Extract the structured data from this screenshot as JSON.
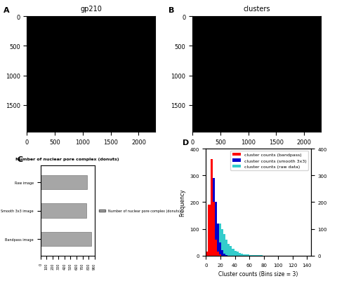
{
  "chart_data": [
    {
      "type": "image",
      "panel_label": "A",
      "title": "gp210",
      "color": "#000000",
      "xlim": [
        0,
        2300
      ],
      "ylim": [
        1950,
        0
      ],
      "xticks": [
        0,
        500,
        1000,
        1500,
        2000
      ],
      "yticks": [
        0,
        500,
        1000,
        1500
      ]
    },
    {
      "type": "image",
      "panel_label": "B",
      "title": "clusters",
      "color": "#000000",
      "xlim": [
        0,
        2300
      ],
      "ylim": [
        1950,
        0
      ],
      "xticks": [
        0,
        500,
        1000,
        1500,
        2000
      ],
      "yticks": [
        0,
        500,
        1000,
        1500
      ]
    },
    {
      "type": "bar",
      "panel_label": "C",
      "orientation": "horizontal",
      "title": "Number of nuclear pore complex (donuts)",
      "categories": [
        "Raw image",
        "Smooth 3x3 image",
        "Bandpass image"
      ],
      "series": [
        {
          "name": "Number of nuclear pore complex (donuts)",
          "color": "#a6a6a6",
          "values": [
            770,
            760,
            840
          ]
        }
      ],
      "xlim": [
        0,
        900
      ],
      "xticks": [
        0,
        100,
        200,
        300,
        400,
        500,
        600,
        700,
        800,
        900
      ],
      "legend": "right"
    },
    {
      "type": "histogram",
      "panel_label": "D",
      "x_label": "Cluster counts (Bins size = 3)",
      "y_label": "Frequency",
      "bins": [
        0,
        3,
        6,
        9,
        12,
        15,
        18,
        21,
        24,
        27,
        30,
        33,
        36,
        39,
        42,
        45,
        48,
        51,
        54,
        57,
        60,
        63,
        66,
        69,
        72,
        75,
        78,
        81
      ],
      "series": [
        {
          "name": "cluster counts (bandpass)",
          "color": "#ff0000",
          "values": [
            15,
            190,
            360,
            200,
            60,
            15,
            5,
            0,
            0,
            0,
            0,
            0,
            0,
            0,
            0,
            0,
            0,
            0,
            0,
            0,
            0,
            0,
            0,
            0,
            0,
            0,
            0
          ]
        },
        {
          "name": "cluster counts (smooth 3x3)",
          "color": "#0000cc",
          "values": [
            0,
            5,
            100,
            290,
            200,
            120,
            50,
            20,
            8,
            3,
            0,
            0,
            0,
            0,
            0,
            0,
            0,
            0,
            0,
            0,
            0,
            0,
            0,
            0,
            0,
            0,
            0
          ]
        },
        {
          "name": "cluster counts (raw data)",
          "color": "#33cccc",
          "values": [
            0,
            0,
            0,
            10,
            60,
            110,
            120,
            100,
            80,
            60,
            45,
            35,
            25,
            18,
            15,
            10,
            8,
            6,
            5,
            4,
            3,
            3,
            2,
            1,
            1,
            1,
            0
          ]
        }
      ],
      "xlim": [
        0,
        145
      ],
      "xticks": [
        0,
        20,
        40,
        60,
        80,
        100,
        120,
        140
      ],
      "ylim": [
        0,
        400
      ],
      "yticks": [
        0,
        100,
        200,
        300,
        400
      ],
      "y2lim": [
        0,
        400
      ],
      "y2ticks": [
        0,
        100,
        200,
        300,
        400
      ],
      "legend": "upper right"
    }
  ]
}
